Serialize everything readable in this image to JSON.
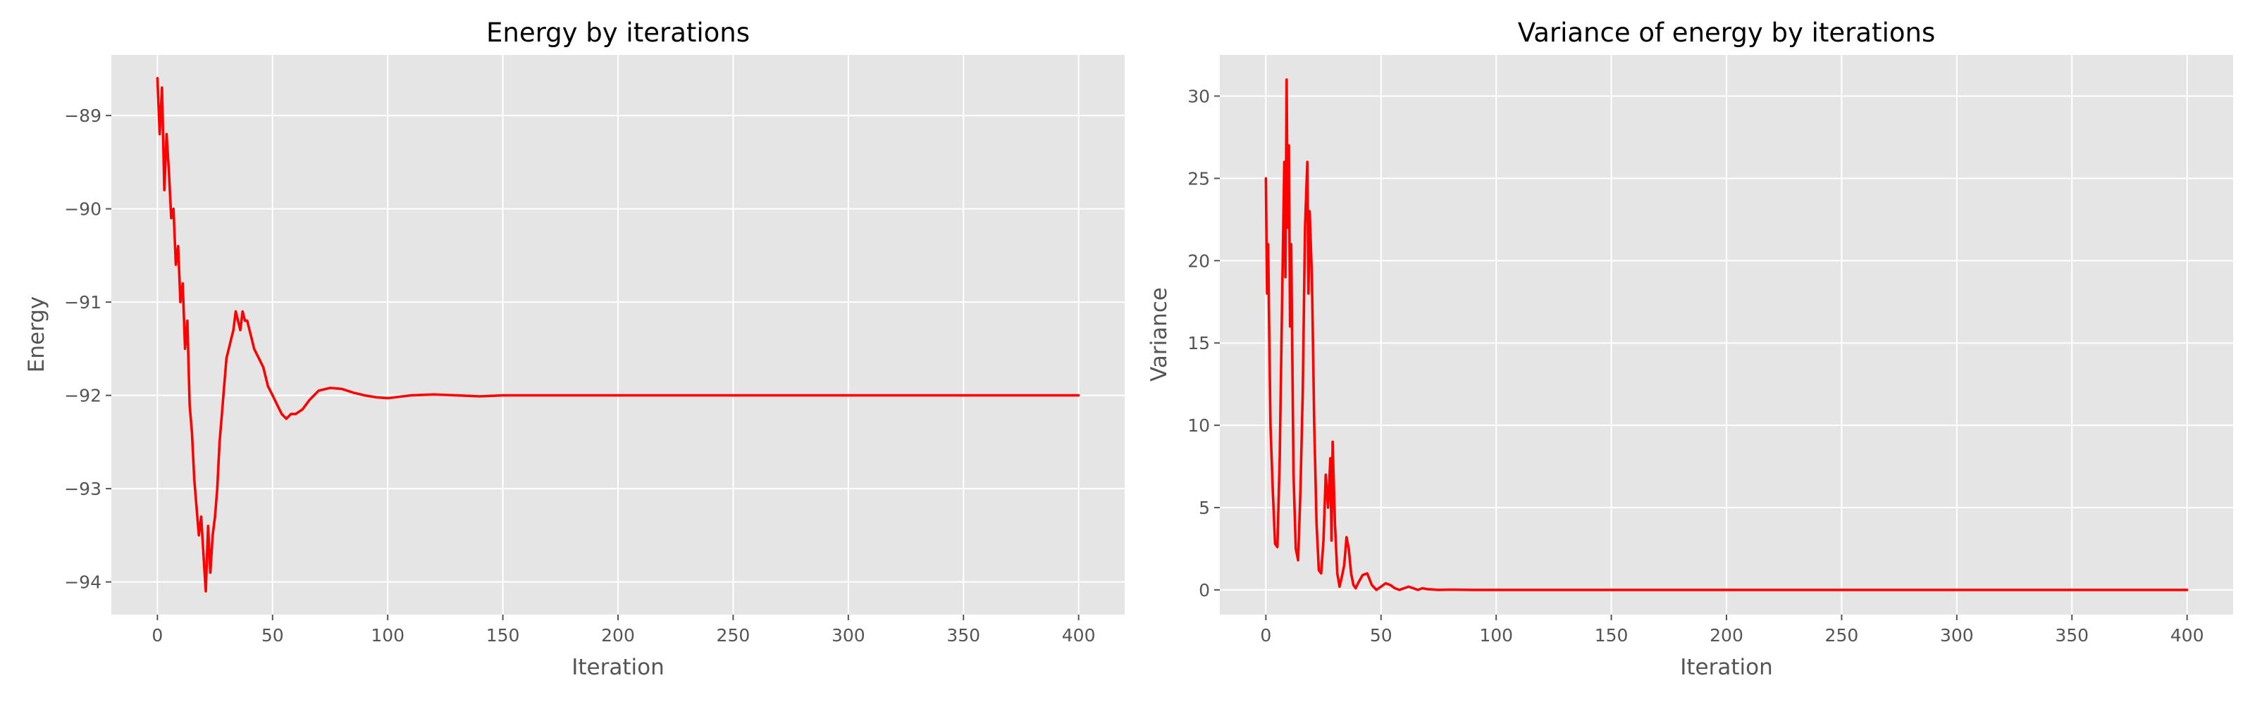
{
  "chart_data": [
    {
      "type": "line",
      "title": "Energy by iterations",
      "xlabel": "Iteration",
      "ylabel": "Energy",
      "xlim": [
        -20,
        420
      ],
      "ylim": [
        -94.35,
        -88.35
      ],
      "xticks": [
        0,
        50,
        100,
        150,
        200,
        250,
        300,
        350,
        400
      ],
      "yticks": [
        -94,
        -93,
        -92,
        -91,
        -90,
        -89
      ],
      "xtick_labels": [
        "0",
        "50",
        "100",
        "150",
        "200",
        "250",
        "300",
        "350",
        "400"
      ],
      "ytick_labels": [
        "−94",
        "−93",
        "−92",
        "−91",
        "−90",
        "−89"
      ],
      "grid": true,
      "color": "#ff0000",
      "series": [
        {
          "x": [
            0,
            1,
            2,
            3,
            4,
            5,
            6,
            7,
            8,
            9,
            10,
            11,
            12,
            13,
            14,
            15,
            16,
            17,
            18,
            19,
            20,
            21,
            22,
            23,
            24,
            25,
            26,
            27,
            28,
            29,
            30,
            31,
            32,
            33,
            34,
            35,
            36,
            37,
            38,
            39,
            40,
            41,
            42,
            44,
            46,
            48,
            50,
            52,
            54,
            56,
            58,
            60,
            63,
            66,
            70,
            75,
            80,
            85,
            90,
            95,
            100,
            110,
            120,
            130,
            140,
            150,
            160,
            180,
            200,
            250,
            300,
            350,
            400
          ],
          "y": [
            -88.6,
            -89.2,
            -88.7,
            -89.8,
            -89.2,
            -89.6,
            -90.1,
            -90.0,
            -90.6,
            -90.4,
            -91.0,
            -90.8,
            -91.5,
            -91.2,
            -92.1,
            -92.4,
            -92.9,
            -93.2,
            -93.5,
            -93.3,
            -93.7,
            -94.1,
            -93.4,
            -93.9,
            -93.5,
            -93.3,
            -93.0,
            -92.5,
            -92.2,
            -91.9,
            -91.6,
            -91.5,
            -91.4,
            -91.3,
            -91.1,
            -91.2,
            -91.3,
            -91.1,
            -91.2,
            -91.2,
            -91.3,
            -91.4,
            -91.5,
            -91.6,
            -91.7,
            -91.9,
            -92.0,
            -92.1,
            -92.2,
            -92.25,
            -92.2,
            -92.2,
            -92.15,
            -92.05,
            -91.95,
            -91.92,
            -91.93,
            -91.97,
            -92.0,
            -92.02,
            -92.03,
            -92.0,
            -91.99,
            -92.0,
            -92.01,
            -92.0,
            -92.0,
            -92.0,
            -92.0,
            -92.0,
            -92.0,
            -92.0,
            -92.0
          ]
        }
      ]
    },
    {
      "type": "line",
      "title": "Variance of energy by iterations",
      "xlabel": "Iteration",
      "ylabel": "Variance",
      "xlim": [
        -20,
        420
      ],
      "ylim": [
        -1.5,
        32.5
      ],
      "xticks": [
        0,
        50,
        100,
        150,
        200,
        250,
        300,
        350,
        400
      ],
      "yticks": [
        0,
        5,
        10,
        15,
        20,
        25,
        30
      ],
      "xtick_labels": [
        "0",
        "50",
        "100",
        "150",
        "200",
        "250",
        "300",
        "350",
        "400"
      ],
      "ytick_labels": [
        "0",
        "5",
        "10",
        "15",
        "20",
        "25",
        "30"
      ],
      "grid": true,
      "color": "#ff0000",
      "series": [
        {
          "x": [
            0,
            0.5,
            1,
            1.5,
            2,
            3,
            4,
            5,
            6,
            7,
            8,
            8.5,
            9,
            9.5,
            10,
            10.5,
            11,
            12,
            13,
            14,
            15,
            16,
            17,
            18,
            18.5,
            19,
            20,
            21,
            22,
            23,
            24,
            25,
            26,
            27,
            28,
            28.5,
            29,
            30,
            31,
            32,
            33,
            34,
            35,
            36,
            37,
            38,
            39,
            40,
            42,
            44,
            46,
            48,
            50,
            52,
            54,
            56,
            58,
            60,
            62,
            64,
            66,
            68,
            70,
            75,
            80,
            90,
            100,
            150,
            200,
            300,
            400
          ],
          "y": [
            25,
            18,
            21,
            15,
            10,
            6,
            2.8,
            2.6,
            8,
            17,
            26,
            19,
            31,
            22,
            27,
            16,
            21,
            7,
            2.5,
            1.8,
            6,
            12,
            22,
            26,
            18,
            23,
            19,
            10,
            4,
            1.2,
            1.0,
            3,
            7,
            5,
            8,
            3,
            9,
            4,
            1.0,
            0.2,
            0.8,
            1.5,
            3.2,
            2.5,
            1.0,
            0.3,
            0.1,
            0.4,
            0.9,
            1.0,
            0.3,
            0.0,
            0.2,
            0.4,
            0.3,
            0.1,
            0.0,
            0.1,
            0.2,
            0.1,
            0.0,
            0.1,
            0.05,
            0.0,
            0.02,
            0.0,
            0.0,
            0.0,
            0.0,
            0.0,
            0.0
          ]
        }
      ]
    }
  ]
}
